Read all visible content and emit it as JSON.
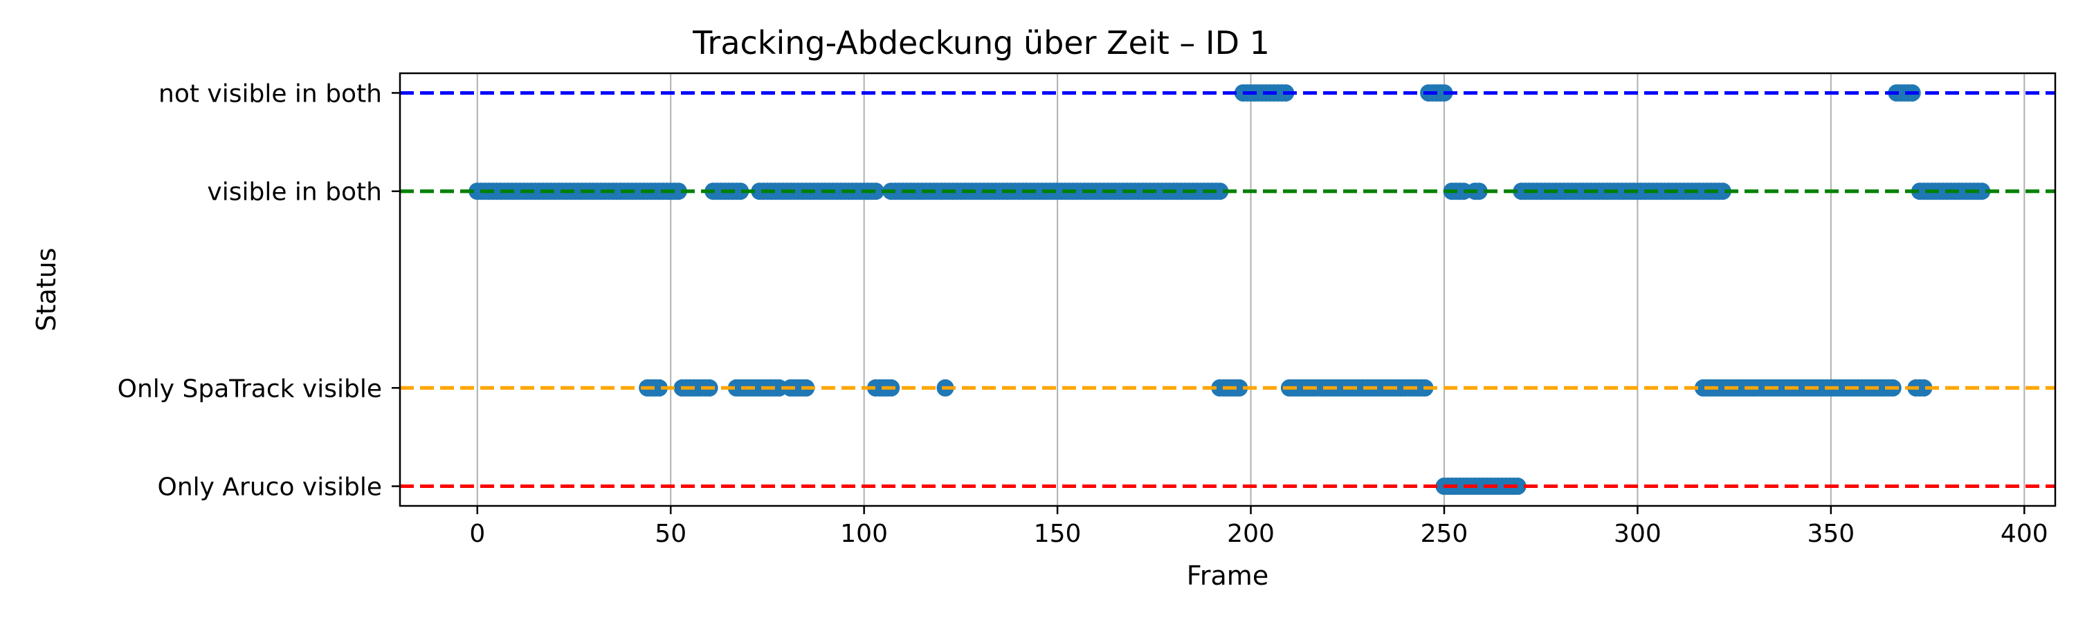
{
  "chart_data": {
    "type": "scatter",
    "title": "Tracking-Abdeckung über Zeit – ID 1",
    "xlabel": "Frame",
    "ylabel": "Status",
    "xlim": [
      -20,
      408
    ],
    "xticks": [
      0,
      50,
      100,
      150,
      200,
      250,
      300,
      350,
      400
    ],
    "ylim": [
      -0.2,
      4.2
    ],
    "grid": "x",
    "legend": "none",
    "marker_color": "#1f77b4",
    "categories": [
      {
        "label": "not visible in both",
        "y": 4,
        "color": "#0000ff"
      },
      {
        "label": "visible in both",
        "y": 3,
        "color": "#008000"
      },
      {
        "label": "Only SpaTrack visible",
        "y": 1,
        "color": "#ffa500"
      },
      {
        "label": "Only Aruco visible",
        "y": 0,
        "color": "#ff0000"
      }
    ],
    "segments": [
      {
        "y": 4,
        "ranges": [
          [
            198,
            209
          ],
          [
            246,
            250
          ],
          [
            367,
            371
          ]
        ]
      },
      {
        "y": 3,
        "ranges": [
          [
            0,
            52
          ],
          [
            61,
            68
          ],
          [
            73,
            103
          ],
          [
            107,
            192
          ],
          [
            252,
            255
          ],
          [
            258,
            259
          ],
          [
            270,
            322
          ],
          [
            373,
            389
          ]
        ]
      },
      {
        "y": 1,
        "ranges": [
          [
            44,
            47
          ],
          [
            53,
            60
          ],
          [
            67,
            78
          ],
          [
            81,
            85
          ],
          [
            103,
            107
          ],
          [
            121,
            121
          ],
          [
            192,
            197
          ],
          [
            210,
            245
          ],
          [
            317,
            366
          ],
          [
            372,
            374
          ]
        ]
      },
      {
        "y": 0,
        "ranges": [
          [
            250,
            269
          ]
        ]
      }
    ]
  }
}
